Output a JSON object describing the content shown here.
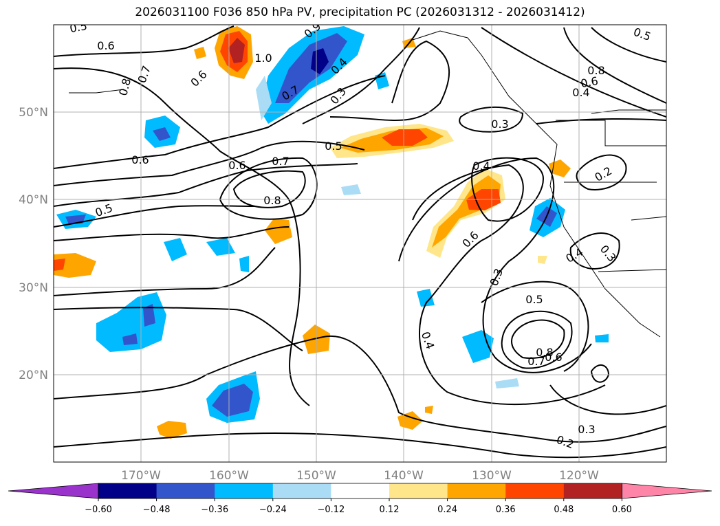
{
  "title": "2026031100 F036 850 hPa PV, precipitation PC (2026031312 - 2026031412)",
  "chart_data": {
    "type": "contour-map",
    "title": "2026031100 F036 850 hPa PV, precipitation PC (2026031312 - 2026031412)",
    "lon_range": [
      -180,
      -110
    ],
    "lat_range": [
      10,
      60
    ],
    "grid": true,
    "lon_ticks": [
      "170°W",
      "160°W",
      "150°W",
      "140°W",
      "130°W",
      "120°W"
    ],
    "lat_ticks": [
      "50°N",
      "40°N",
      "30°N",
      "20°N"
    ],
    "contour_labels": [
      "0.5",
      "0.6",
      "0.7",
      "0.8",
      "1.0",
      "0.6",
      "0.7",
      "0.9",
      "0.4",
      "0.3",
      "0.8",
      "0.6",
      "0.4",
      "0.5",
      "0.6",
      "0.6",
      "0.7",
      "0.5",
      "0.3",
      "0.8",
      "0.4",
      "0.2",
      "0.5",
      "0.6",
      "0.3",
      "0.4",
      "0.3",
      "0.5",
      "0.4",
      "0.8",
      "0.7",
      "0.6",
      "0.3",
      "0.2"
    ],
    "colorbar": {
      "ticks": [
        "−0.60",
        "−0.48",
        "−0.36",
        "−0.24",
        "−0.12",
        "0.12",
        "0.24",
        "0.36",
        "0.48",
        "0.60"
      ],
      "colors": [
        "#9933cc",
        "#000088",
        "#3355cc",
        "#00bbff",
        "#aaddf5",
        "#ffffff",
        "#ffe68a",
        "#ffa500",
        "#ff4500",
        "#b22222",
        "#ff85a8"
      ],
      "extend": "both"
    }
  }
}
